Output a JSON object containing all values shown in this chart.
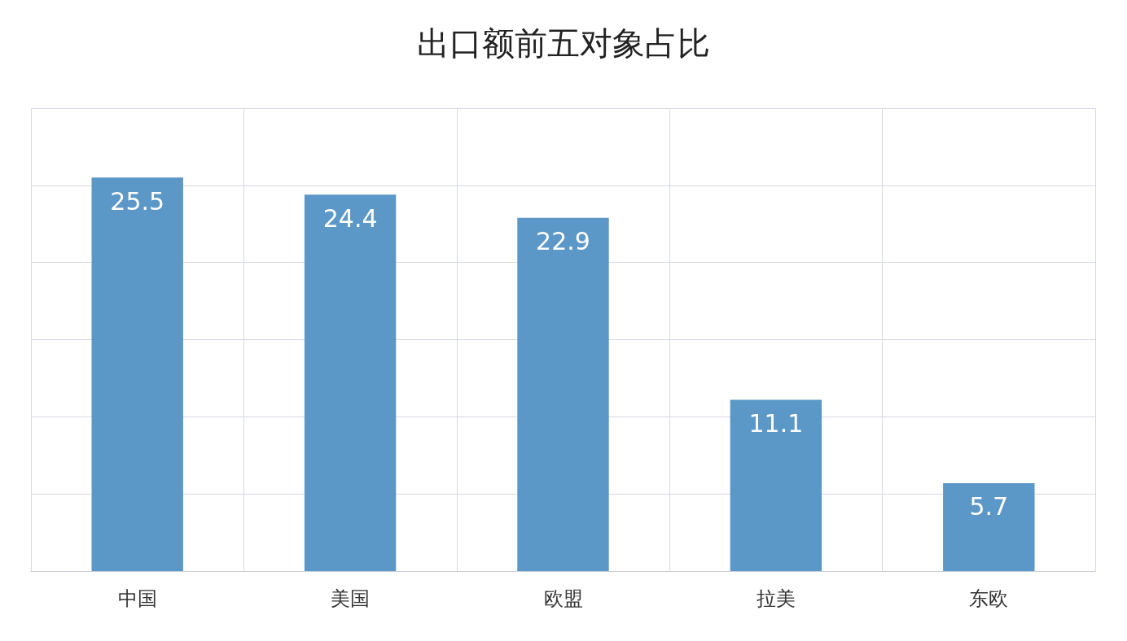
{
  "chart_data": {
    "type": "bar",
    "title": "出口额前五对象占比",
    "categories": [
      "中国",
      "美国",
      "欧盟",
      "拉美",
      "东欧"
    ],
    "values": [
      25.5,
      24.4,
      22.9,
      11.1,
      5.7
    ],
    "color": "#5b97c7",
    "ylim": [
      0,
      30
    ],
    "yticks": [
      {
        "value": 0,
        "label": null
      },
      {
        "value": 5,
        "label": null
      },
      {
        "value": 10,
        "label": null
      },
      {
        "value": 15,
        "label": null
      },
      {
        "value": 20,
        "label": null
      },
      {
        "value": 25,
        "label": null
      },
      {
        "value": 30,
        "label": null
      }
    ],
    "tick_labels": "x",
    "grid": true,
    "data_labels": true
  }
}
